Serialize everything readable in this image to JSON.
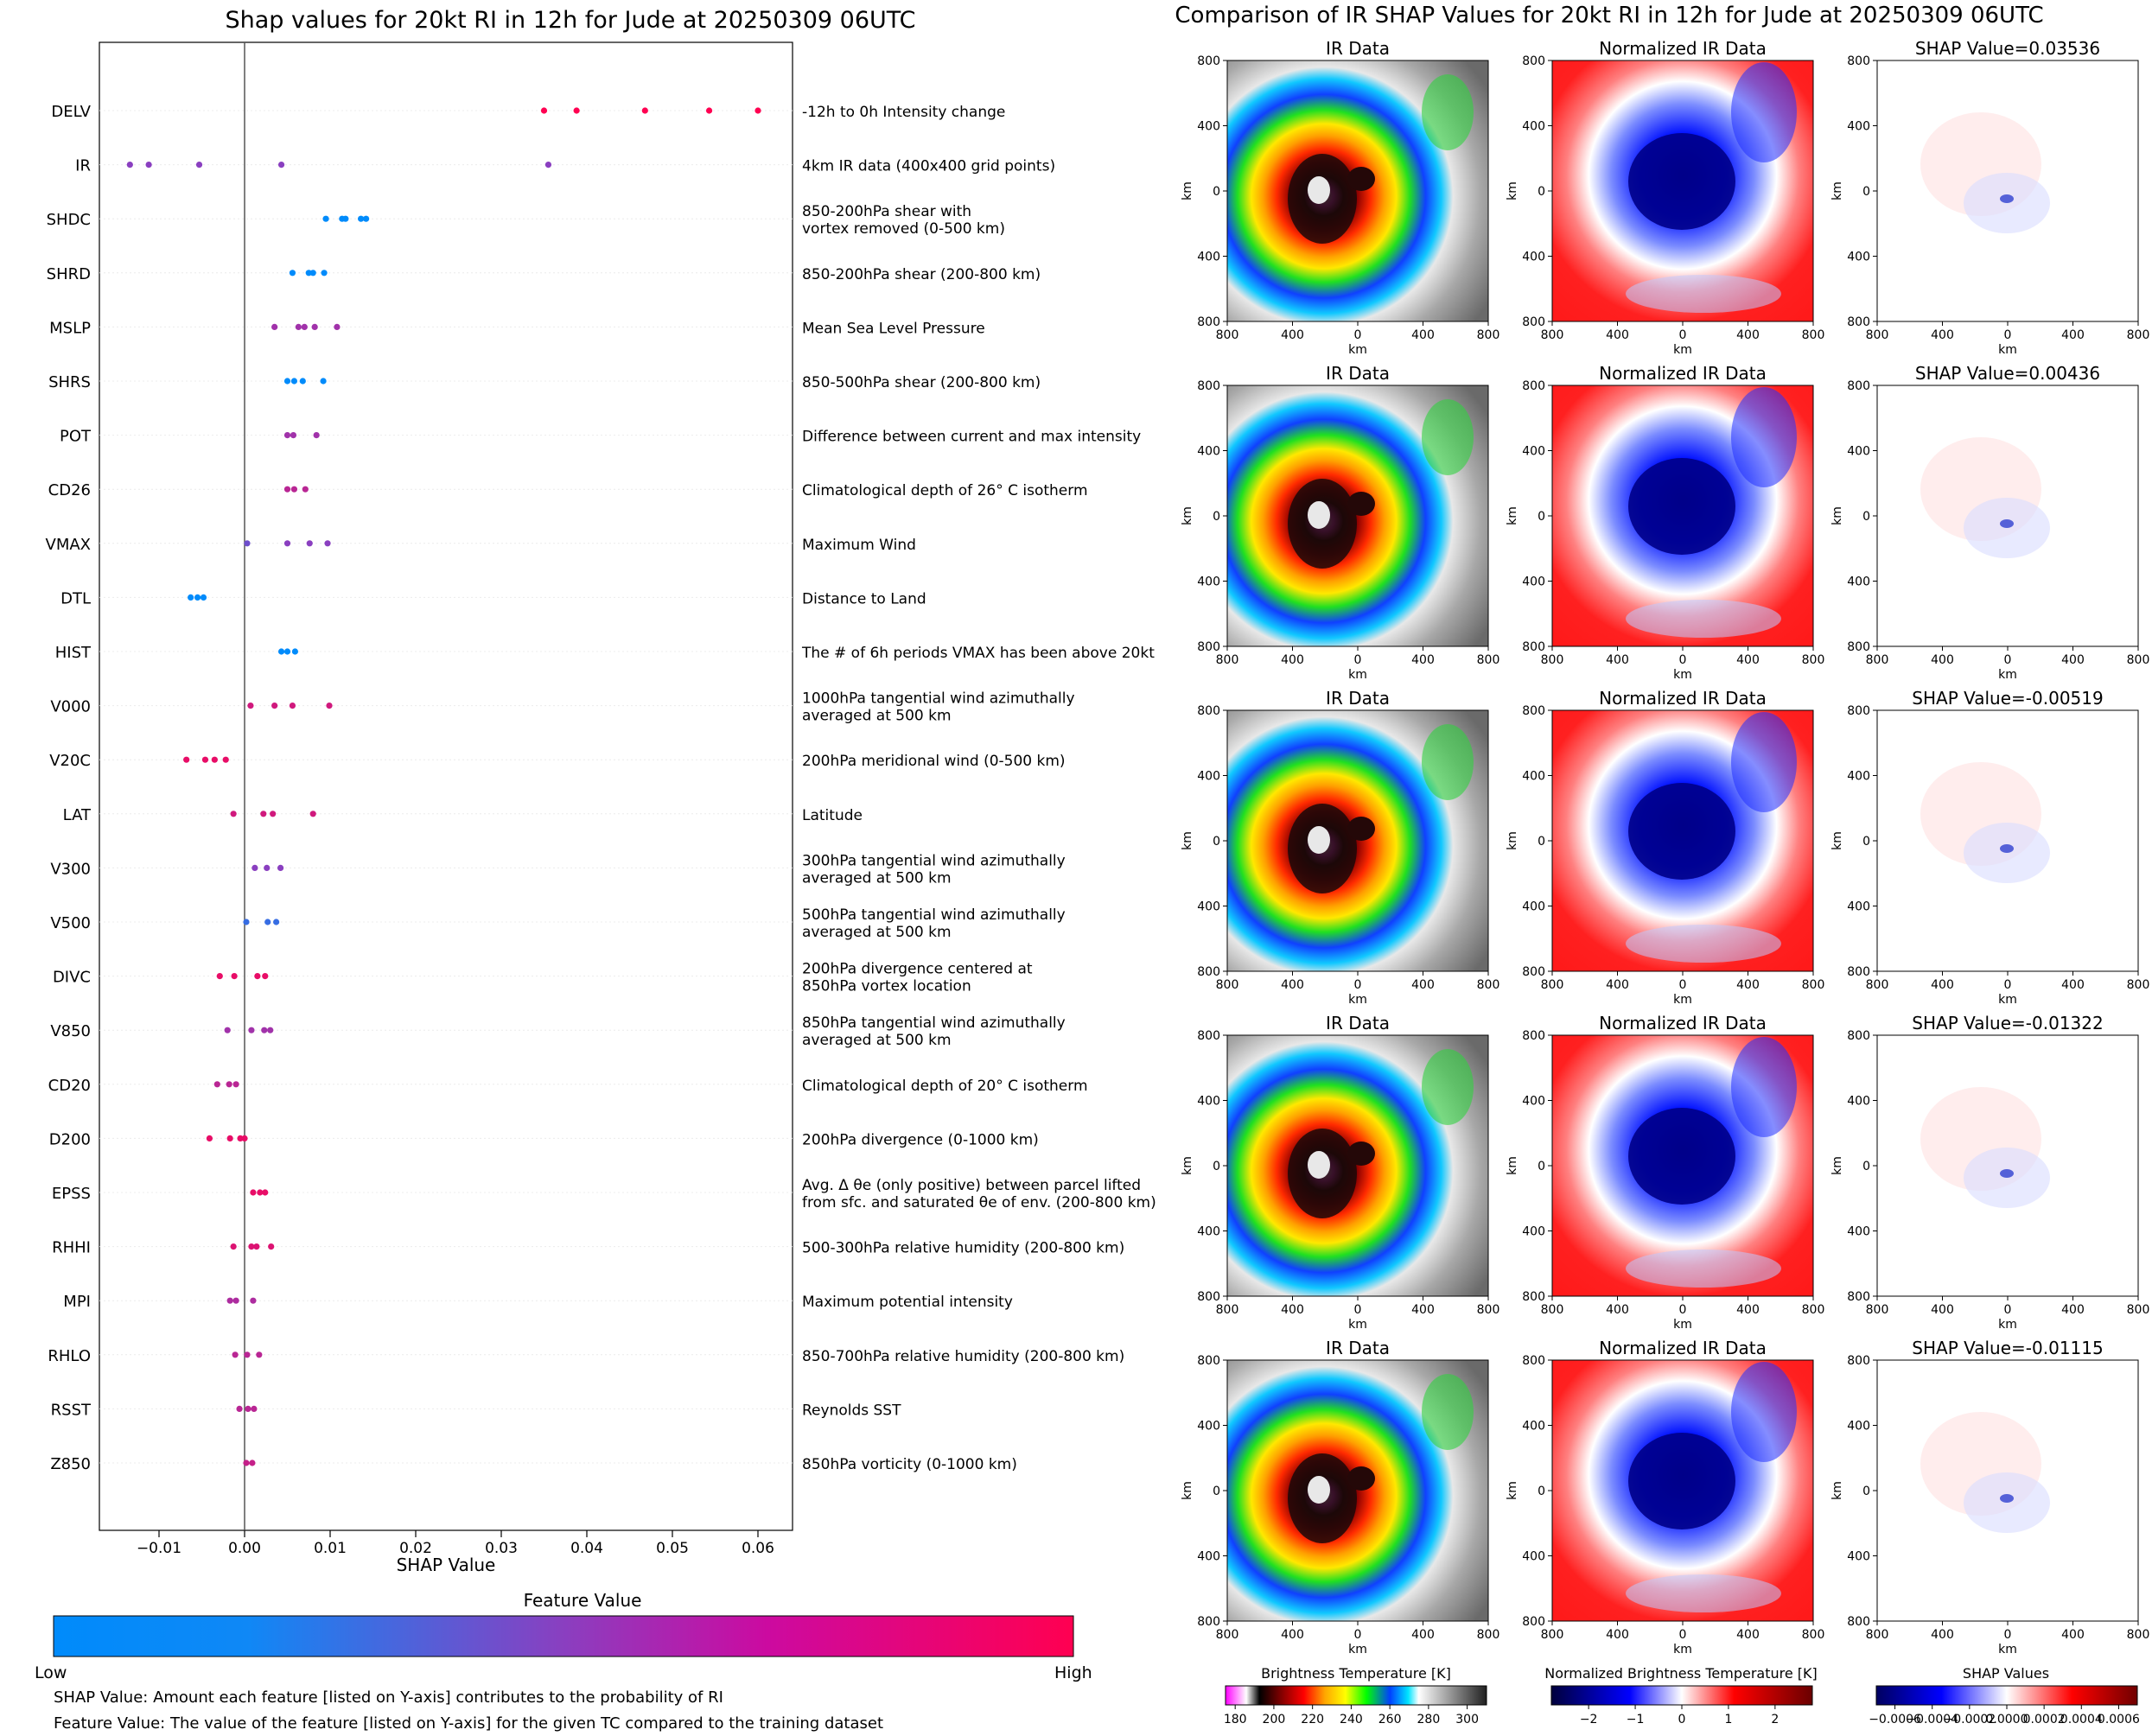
{
  "left_panel": {
    "title": "Shap values for 20kt RI in 12h for Jude at 20250309 06UTC",
    "colorbar": {
      "title": "Feature Value",
      "low_label": "Low",
      "high_label": "High",
      "low_color": "#008bfb",
      "mid_color": "#8a3fc0",
      "high_color": "#ff0051"
    },
    "notes": [
      "SHAP Value: Amount each feature [listed on Y-axis] contributes to the probability of RI",
      "Feature Value: The value of the feature [listed on Y-axis] for the given TC compared to the training dataset"
    ]
  },
  "right_panel": {
    "title": "Comparison of IR SHAP Values for 20kt RI in 12h for Jude at 20250309 06UTC",
    "column_titles": [
      "IR Data",
      "Normalized IR Data"
    ],
    "shap_titles": [
      "SHAP Value=0.03536",
      "SHAP Value=0.00436",
      "SHAP Value=-0.00519",
      "SHAP Value=-0.01322",
      "SHAP Value=-0.01115"
    ],
    "axis_label": "km",
    "ticks": [
      "800",
      "400",
      "0",
      "400",
      "800"
    ],
    "colorbars": [
      {
        "title": "Brightness Temperature [K]",
        "ticks": [
          "180",
          "200",
          "220",
          "240",
          "260",
          "280",
          "300"
        ]
      },
      {
        "title": "Normalized Brightness Temperature [K]",
        "ticks": [
          "−2",
          "−1",
          "0",
          "1",
          "2"
        ]
      },
      {
        "title": "SHAP Values",
        "ticks": [
          "−0.0006",
          "−0.0004",
          "−0.0002",
          "0.0000",
          "0.0002",
          "0.0004",
          "0.0006"
        ]
      }
    ]
  },
  "chart_data": {
    "type": "scatter",
    "xlabel": "SHAP Value",
    "xlim": [
      -0.017,
      0.064
    ],
    "xticks": [
      -0.01,
      0.0,
      0.01,
      0.02,
      0.03,
      0.04,
      0.05,
      0.06
    ],
    "xtick_labels": [
      "−0.01",
      "0.00",
      "0.01",
      "0.02",
      "0.03",
      "0.04",
      "0.05",
      "0.06"
    ],
    "features": [
      {
        "name": "DELV",
        "desc": "-12h to 0h Intensity change",
        "points": [
          [
            0.035,
            1.0
          ],
          [
            0.0388,
            1.0
          ],
          [
            0.0468,
            1.0
          ],
          [
            0.0543,
            1.0
          ],
          [
            0.06,
            1.0
          ]
        ]
      },
      {
        "name": "IR",
        "desc": "4km IR data (400x400 grid points)",
        "points": [
          [
            -0.0134,
            0.5
          ],
          [
            -0.0112,
            0.5
          ],
          [
            -0.0053,
            0.5
          ],
          [
            0.0043,
            0.5
          ],
          [
            0.0355,
            0.5
          ]
        ]
      },
      {
        "name": "SHDC",
        "desc": "850-200hPa shear with\nvortex removed (0-500 km)",
        "points": [
          [
            0.0095,
            0.0
          ],
          [
            0.0114,
            0.0
          ],
          [
            0.0118,
            0.0
          ],
          [
            0.0136,
            0.0
          ],
          [
            0.0142,
            0.0
          ]
        ]
      },
      {
        "name": "SHRD",
        "desc": "850-200hPa shear (200-800 km)",
        "points": [
          [
            0.0056,
            0.0
          ],
          [
            0.0075,
            0.0
          ],
          [
            0.008,
            0.0
          ],
          [
            0.0093,
            0.0
          ]
        ]
      },
      {
        "name": "MSLP",
        "desc": "Mean Sea Level Pressure",
        "points": [
          [
            0.0035,
            0.6
          ],
          [
            0.0063,
            0.6
          ],
          [
            0.007,
            0.6
          ],
          [
            0.0082,
            0.6
          ],
          [
            0.0108,
            0.6
          ]
        ]
      },
      {
        "name": "SHRS",
        "desc": "850-500hPa shear (200-800 km)",
        "points": [
          [
            0.005,
            0.0
          ],
          [
            0.0058,
            0.0
          ],
          [
            0.0068,
            0.0
          ],
          [
            0.0092,
            0.0
          ]
        ]
      },
      {
        "name": "POT",
        "desc": "Difference between current and max intensity",
        "points": [
          [
            0.005,
            0.6
          ],
          [
            0.0057,
            0.6
          ],
          [
            0.0084,
            0.6
          ]
        ]
      },
      {
        "name": "CD26",
        "desc": "Climatological depth of 26° C isotherm",
        "points": [
          [
            0.005,
            0.7
          ],
          [
            0.0058,
            0.7
          ],
          [
            0.0071,
            0.7
          ]
        ]
      },
      {
        "name": "VMAX",
        "desc": "Maximum Wind",
        "points": [
          [
            0.0003,
            0.4
          ],
          [
            0.005,
            0.5
          ],
          [
            0.0076,
            0.5
          ],
          [
            0.0097,
            0.5
          ]
        ]
      },
      {
        "name": "DTL",
        "desc": "Distance to Land",
        "points": [
          [
            -0.0063,
            0.0
          ],
          [
            -0.0055,
            0.0
          ],
          [
            -0.0048,
            0.0
          ]
        ]
      },
      {
        "name": "HIST",
        "desc": "The # of 6h periods VMAX has been above 20kt",
        "points": [
          [
            0.0043,
            0.0
          ],
          [
            0.005,
            0.0
          ],
          [
            0.0059,
            0.0
          ]
        ]
      },
      {
        "name": "V000",
        "desc": "1000hPa tangential wind azimuthally\naveraged at 500 km",
        "points": [
          [
            0.0007,
            0.8
          ],
          [
            0.0035,
            0.8
          ],
          [
            0.0056,
            0.8
          ],
          [
            0.0099,
            0.8
          ]
        ]
      },
      {
        "name": "V20C",
        "desc": "200hPa meridional wind (0-500 km)",
        "points": [
          [
            -0.0068,
            0.9
          ],
          [
            -0.0046,
            0.9
          ],
          [
            -0.0035,
            0.9
          ],
          [
            -0.0022,
            0.9
          ]
        ]
      },
      {
        "name": "LAT",
        "desc": "Latitude",
        "points": [
          [
            -0.0013,
            0.8
          ],
          [
            0.0022,
            0.8
          ],
          [
            0.0033,
            0.8
          ],
          [
            0.008,
            0.8
          ]
        ]
      },
      {
        "name": "V300",
        "desc": "300hPa tangential wind azimuthally\naveraged at 500 km",
        "points": [
          [
            0.0012,
            0.5
          ],
          [
            0.0026,
            0.5
          ],
          [
            0.0042,
            0.5
          ]
        ]
      },
      {
        "name": "V500",
        "desc": "500hPa tangential wind azimuthally\naveraged at 500 km",
        "points": [
          [
            0.0002,
            0.2
          ],
          [
            0.0027,
            0.2
          ],
          [
            0.0037,
            0.2
          ]
        ]
      },
      {
        "name": "DIVC",
        "desc": "200hPa divergence centered at\n850hPa vortex location",
        "points": [
          [
            -0.0029,
            0.9
          ],
          [
            -0.0012,
            0.9
          ],
          [
            0.0015,
            0.9
          ],
          [
            0.0024,
            0.9
          ]
        ]
      },
      {
        "name": "V850",
        "desc": "850hPa tangential wind azimuthally\naveraged at 500 km",
        "points": [
          [
            -0.002,
            0.6
          ],
          [
            0.0008,
            0.6
          ],
          [
            0.0023,
            0.6
          ],
          [
            0.003,
            0.6
          ]
        ]
      },
      {
        "name": "CD20",
        "desc": "Climatological depth of 20° C isotherm",
        "points": [
          [
            -0.0032,
            0.7
          ],
          [
            -0.0018,
            0.7
          ],
          [
            -0.001,
            0.7
          ]
        ]
      },
      {
        "name": "D200",
        "desc": "200hPa divergence (0-1000 km)",
        "points": [
          [
            -0.0041,
            0.9
          ],
          [
            -0.0017,
            0.9
          ],
          [
            -0.0005,
            0.9
          ],
          [
            0.0,
            0.9
          ]
        ]
      },
      {
        "name": "EPSS",
        "desc": "Avg. Δ θe (only positive) between parcel lifted\nfrom sfc. and saturated θe of env. (200-800 km)",
        "points": [
          [
            0.001,
            0.9
          ],
          [
            0.0018,
            0.9
          ],
          [
            0.0024,
            0.9
          ]
        ]
      },
      {
        "name": "RHHI",
        "desc": "500-300hPa relative humidity (200-800 km)",
        "points": [
          [
            -0.0013,
            0.85
          ],
          [
            0.0008,
            0.85
          ],
          [
            0.0014,
            0.85
          ],
          [
            0.0031,
            0.85
          ]
        ]
      },
      {
        "name": "MPI",
        "desc": "Maximum potential intensity",
        "points": [
          [
            -0.0017,
            0.65
          ],
          [
            -0.001,
            0.65
          ],
          [
            0.001,
            0.65
          ]
        ]
      },
      {
        "name": "RHLO",
        "desc": "850-700hPa relative humidity (200-800 km)",
        "points": [
          [
            -0.0011,
            0.7
          ],
          [
            0.0003,
            0.7
          ],
          [
            0.0017,
            0.7
          ]
        ]
      },
      {
        "name": "RSST",
        "desc": "Reynolds SST",
        "points": [
          [
            -0.0006,
            0.7
          ],
          [
            0.0004,
            0.7
          ],
          [
            0.0011,
            0.7
          ]
        ]
      },
      {
        "name": "Z850",
        "desc": "850hPa vorticity (0-1000 km)",
        "points": [
          [
            0.0002,
            0.75
          ],
          [
            0.0009,
            0.75
          ]
        ]
      }
    ]
  }
}
